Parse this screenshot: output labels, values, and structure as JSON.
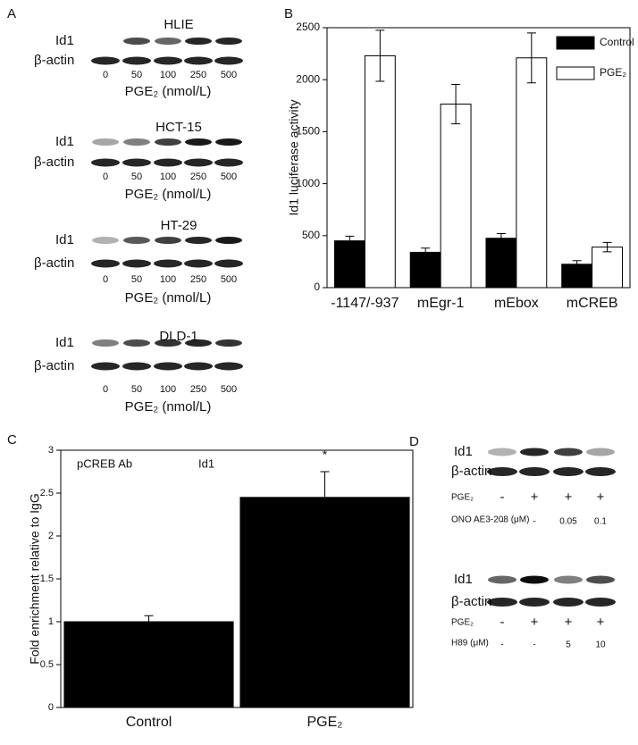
{
  "panel_labels": [
    "A",
    "B",
    "C",
    "D"
  ],
  "chart_data": [
    {
      "type": "bar",
      "ylabel": "Id1 luciferase activity",
      "categories": [
        "-1147/-937",
        "mEgr-1",
        "mEbox",
        "mCREB"
      ],
      "series": [
        {
          "name": "Control",
          "color": "#000000",
          "values": [
            450,
            340,
            475,
            225
          ],
          "errors": [
            45,
            40,
            45,
            35
          ]
        },
        {
          "name": "PGE₂",
          "color": "#ffffff",
          "values": [
            2230,
            1765,
            2210,
            390
          ],
          "errors": [
            245,
            190,
            240,
            45
          ]
        }
      ],
      "ylim": [
        0,
        2500
      ],
      "yticks": [
        0,
        500,
        1000,
        1500,
        2000,
        2500
      ],
      "legend": "upper right",
      "grid": false
    },
    {
      "type": "bar",
      "ylabel": "Fold enrichment relative to IgG",
      "categories": [
        "Control",
        "PGE₂"
      ],
      "values": [
        1.0,
        2.45
      ],
      "errors": [
        0.07,
        0.3
      ],
      "color": "#000000",
      "annotations": [
        "pCREB Ab",
        "Id1",
        "*"
      ],
      "ylim": [
        0,
        3
      ],
      "yticks": [
        0,
        0.5,
        1,
        1.5,
        2,
        2.5,
        3
      ],
      "grid": false
    }
  ],
  "blots_a": [
    {
      "title": "HLIE",
      "rows": [
        "Id1",
        "β-actin"
      ],
      "lanes": [
        "0",
        "50",
        "100",
        "250",
        "500"
      ],
      "xlabel": "PGE₂ (nmol/L)"
    },
    {
      "title": "HCT-15",
      "rows": [
        "Id1",
        "β-actin"
      ],
      "lanes": [
        "0",
        "50",
        "100",
        "250",
        "500"
      ],
      "xlabel": "PGE₂ (nmol/L)"
    },
    {
      "title": "HT-29",
      "rows": [
        "Id1",
        "β-actin"
      ],
      "lanes": [
        "0",
        "50",
        "100",
        "250",
        "500"
      ],
      "xlabel": "PGE₂ (nmol/L)"
    },
    {
      "title": "DLD-1",
      "rows": [
        "Id1",
        "β-actin"
      ],
      "lanes": [
        "0",
        "50",
        "100",
        "250",
        "500"
      ],
      "xlabel": "PGE₂ (nmol/L)"
    }
  ],
  "blots_d": [
    {
      "rows": [
        "Id1",
        "β-actin"
      ],
      "treatments": [
        {
          "label": "PGE₂",
          "lanes": [
            "-",
            "+",
            "+",
            "+"
          ]
        },
        {
          "label": "ONO AE3-208 (μM)",
          "lanes": [
            "-",
            "-",
            "0.05",
            "0.1"
          ]
        }
      ]
    },
    {
      "rows": [
        "Id1",
        "β-actin"
      ],
      "treatments": [
        {
          "label": "PGE₂",
          "lanes": [
            "-",
            "+",
            "+",
            "+"
          ]
        },
        {
          "label": "H89 (μM)",
          "lanes": [
            "-",
            "-",
            "5",
            "10"
          ]
        }
      ]
    }
  ]
}
